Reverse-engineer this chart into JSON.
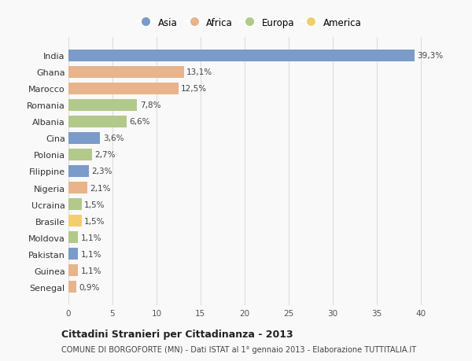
{
  "countries": [
    "India",
    "Ghana",
    "Marocco",
    "Romania",
    "Albania",
    "Cina",
    "Polonia",
    "Filippine",
    "Nigeria",
    "Ucraina",
    "Brasile",
    "Moldova",
    "Pakistan",
    "Guinea",
    "Senegal"
  ],
  "values": [
    39.3,
    13.1,
    12.5,
    7.8,
    6.6,
    3.6,
    2.7,
    2.3,
    2.1,
    1.5,
    1.5,
    1.1,
    1.1,
    1.1,
    0.9
  ],
  "labels": [
    "39,3%",
    "13,1%",
    "12,5%",
    "7,8%",
    "6,6%",
    "3,6%",
    "2,7%",
    "2,3%",
    "2,1%",
    "1,5%",
    "1,5%",
    "1,1%",
    "1,1%",
    "1,1%",
    "0,9%"
  ],
  "continents": [
    "Asia",
    "Africa",
    "Africa",
    "Europa",
    "Europa",
    "Asia",
    "Europa",
    "Asia",
    "Africa",
    "Europa",
    "America",
    "Europa",
    "Asia",
    "Africa",
    "Africa"
  ],
  "colors": {
    "Asia": "#7b9bc8",
    "Africa": "#e8b48c",
    "Europa": "#b2c98a",
    "America": "#f2cf6e"
  },
  "title": "Cittadini Stranieri per Cittadinanza - 2013",
  "subtitle": "COMUNE DI BORGOFORTE (MN) - Dati ISTAT al 1° gennaio 2013 - Elaborazione TUTTITALIA.IT",
  "xlim": [
    0,
    41
  ],
  "xticks": [
    0,
    5,
    10,
    15,
    20,
    25,
    30,
    35,
    40
  ],
  "bg_color": "#f9f9f9",
  "grid_color": "#dddddd",
  "bar_height": 0.72
}
